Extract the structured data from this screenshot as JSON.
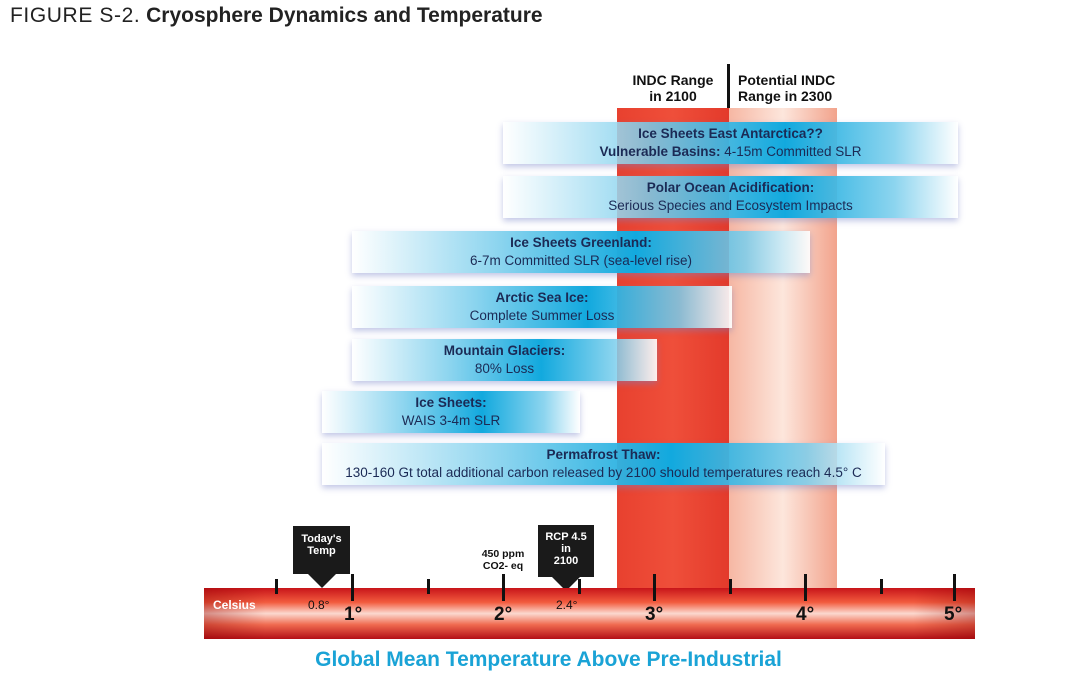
{
  "figure": {
    "label": "FIGURE S-2.",
    "title": "Cryosphere Dynamics and Temperature"
  },
  "indc": {
    "range_2100": "INDC Range\nin 2100",
    "range_2300": "Potential INDC\nRange in 2300"
  },
  "bars": [
    {
      "title": "Ice Sheets East Antarctica??",
      "desc_bold": "Vulnerable Basins:",
      "desc": " 4-15m Committed SLR"
    },
    {
      "title": "Polar Ocean Acidification:",
      "desc_bold": "",
      "desc": "Serious Species and Ecosystem Impacts"
    },
    {
      "title": "Ice Sheets Greenland:",
      "desc_bold": "",
      "desc": "6-7m  Committed SLR (sea-level rise)"
    },
    {
      "title": "Arctic Sea Ice:",
      "desc_bold": "",
      "desc": "Complete Summer Loss"
    },
    {
      "title": "Mountain Glaciers:",
      "desc_bold": "",
      "desc": "80% Loss"
    },
    {
      "title": "Ice Sheets:",
      "desc_bold": "",
      "desc": "WAIS 3-4m SLR"
    },
    {
      "title": "Permafrost Thaw:",
      "desc_bold": "",
      "desc": "130-160 Gt total additional carbon released by 2100 should temperatures reach 4.5° C"
    }
  ],
  "markers": {
    "today": "Today's\nTemp",
    "rcp": "RCP 4.5\nin\n2100",
    "ppm": "450 ppm\nCO2- eq"
  },
  "scale": {
    "unit_label": "Celsius",
    "today_value": "0.8°",
    "rcp_value": "2.4°",
    "ticks": [
      "1°",
      "2°",
      "3°",
      "4°",
      "5°"
    ],
    "axis_title": "Global Mean Temperature Above Pre-Industrial"
  },
  "colors": {
    "title_blue": "#1aa3d6",
    "bar_blue": "#12a9de",
    "indc_red": "#e8412f",
    "indc_light": "#fde6dc"
  }
}
